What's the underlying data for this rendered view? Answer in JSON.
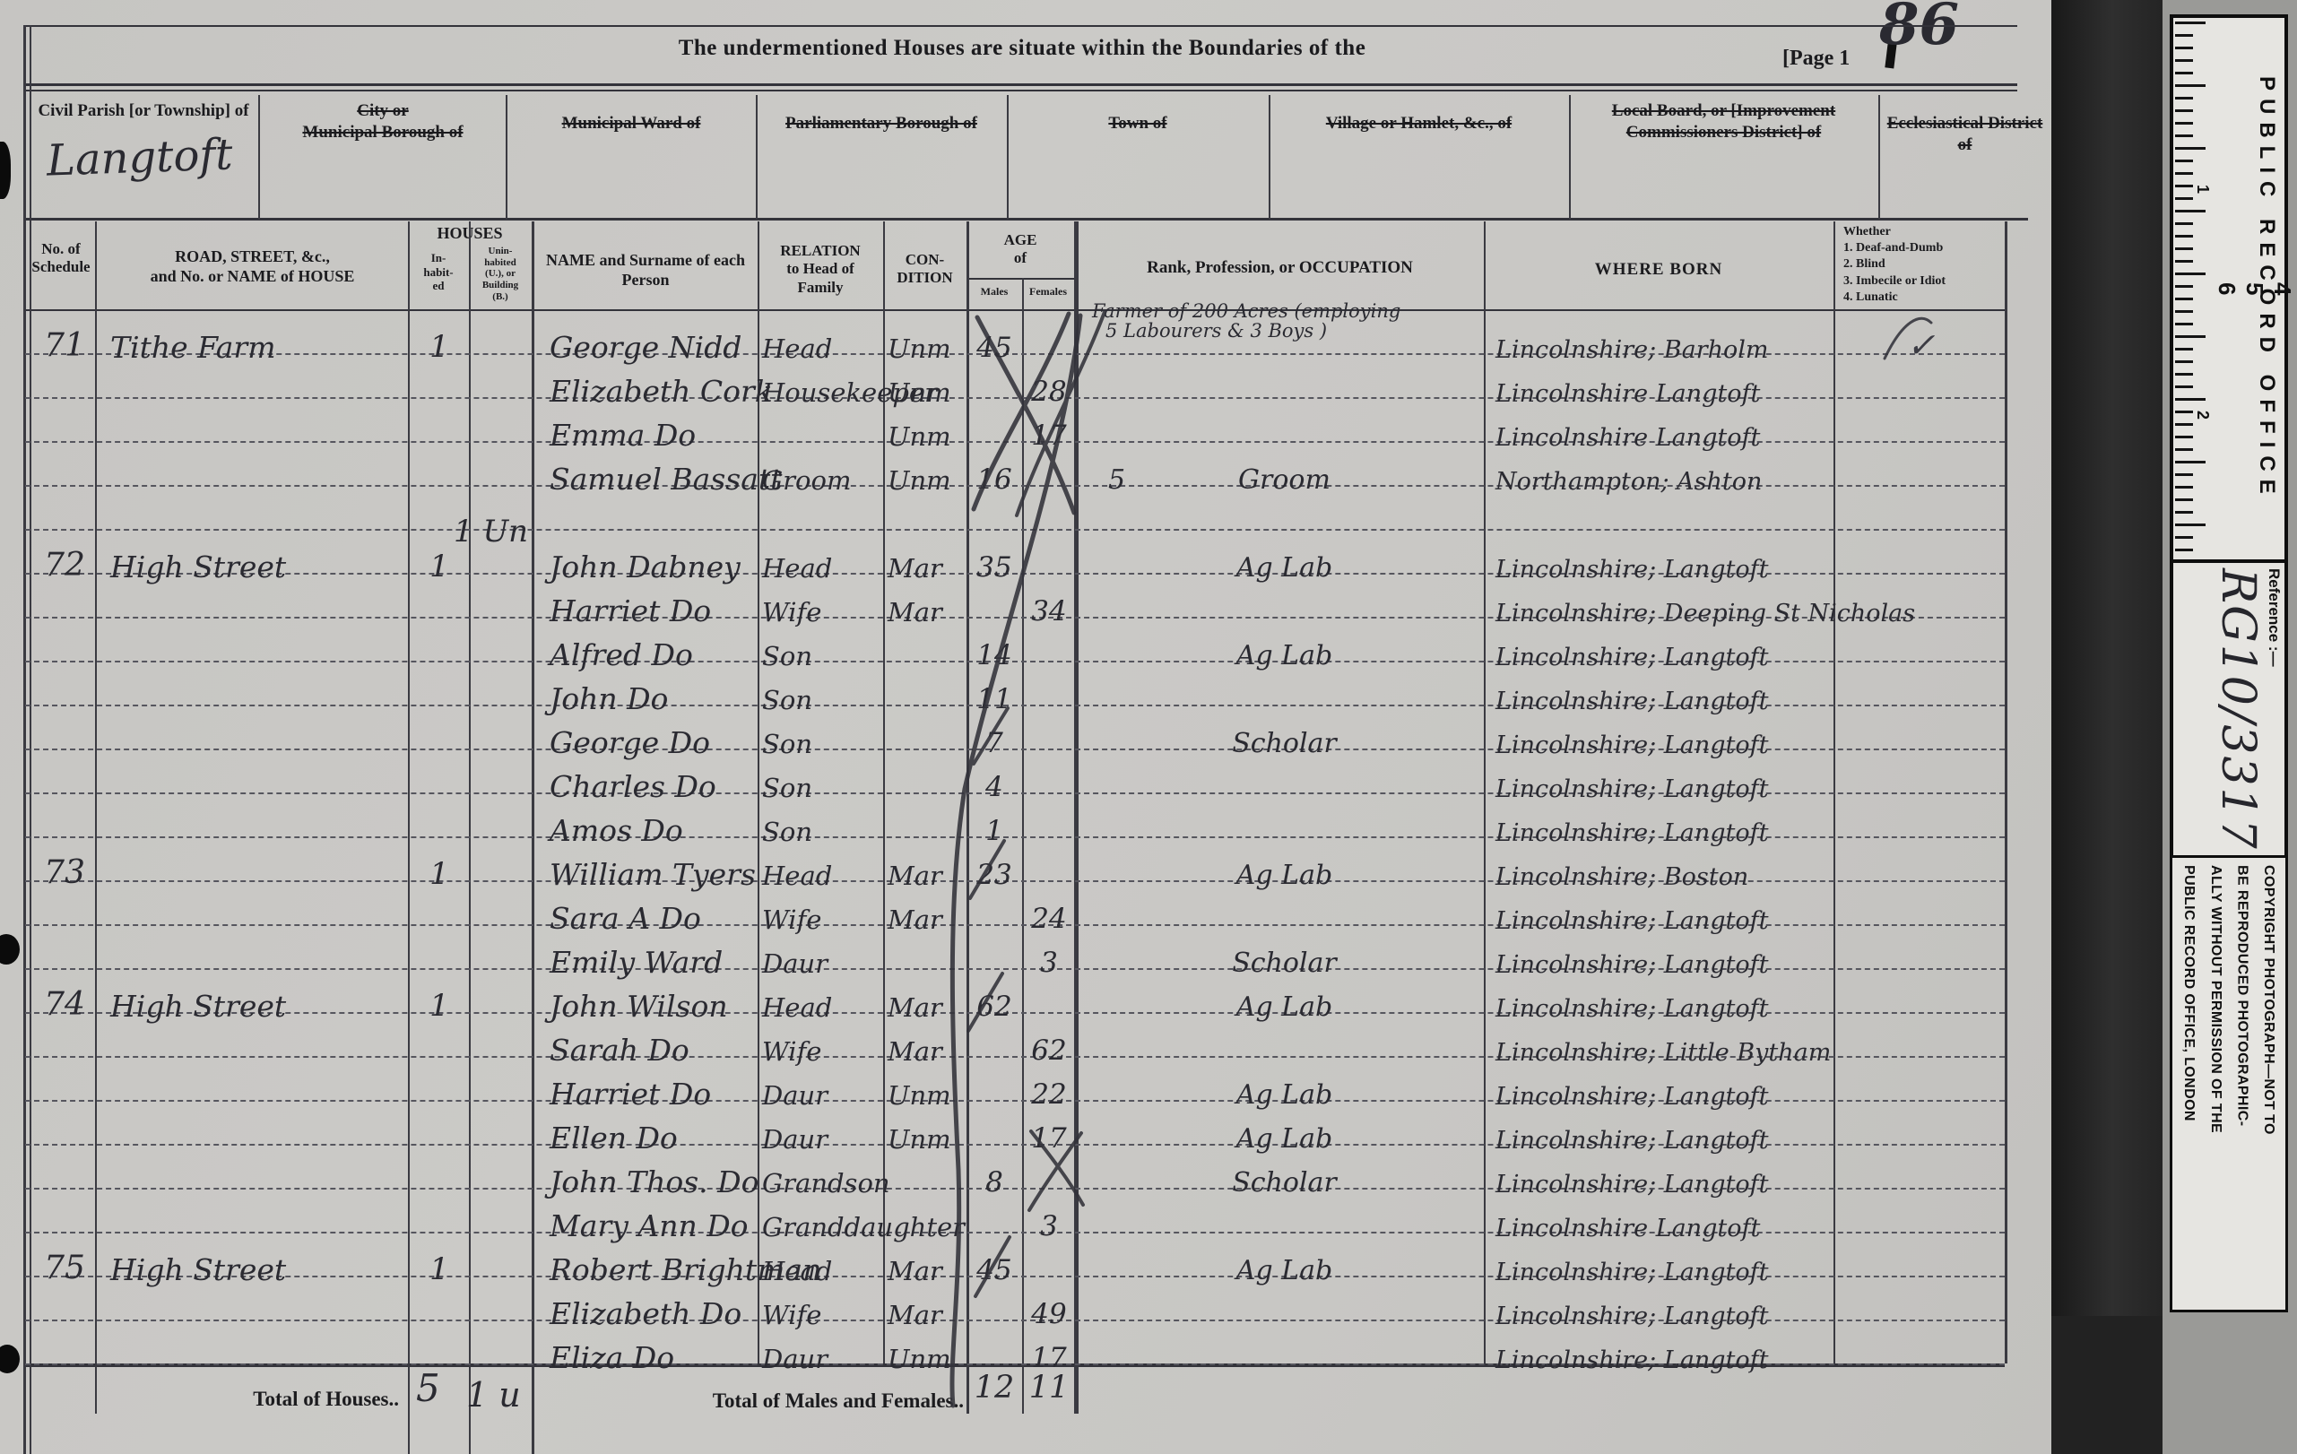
{
  "page": {
    "number": "86",
    "label": "[Page 1",
    "title": "The undermentioned Houses are situate within the Boundaries of the"
  },
  "geo": {
    "cols": [
      {
        "label": "Civil Parish [or Township] of"
      },
      {
        "label": "City or\nMunicipal Borough of"
      },
      {
        "label": "Municipal Ward of"
      },
      {
        "label": "Parliamentary Borough of"
      },
      {
        "label": "Town of"
      },
      {
        "label": "Village or Hamlet, &c., of"
      },
      {
        "label": "Local Board, or [Improvement\nCommissioners District] of"
      },
      {
        "label": "Ecclesiastical District of"
      }
    ],
    "parish_value": "Langtoft"
  },
  "heads": {
    "schedule": "No. of\nSchedule",
    "street": "ROAD, STREET, &c.,\nand No. or NAME of HOUSE",
    "houses": "HOUSES",
    "inhabited": "In-\nhabit-\ned",
    "uninhabited": "Unin-\nhabited\n(U.), or\nBuilding\n(B.)",
    "name": "NAME and Surname of each\nPerson",
    "relation": "RELATION\nto Head of\nFamily",
    "condition": "CON-\nDITION",
    "age": "AGE\nof",
    "males": "Males",
    "females": "Females",
    "occupation": "Rank, Profession, or OCCUPATION",
    "born": "WHERE BORN",
    "disability": "Whether\n1. Deaf-and-Dumb\n2. Blind\n3. Imbecile or Idiot\n4. Lunatic"
  },
  "table": {
    "rows": [
      {
        "s": "71",
        "st": "Tithe Farm",
        "inh": "1",
        "nm": "George Nidd",
        "rel": "Head",
        "cond": "Unm",
        "am": "45",
        "oc": "Farmer of 200 Acres (employing",
        "oc2": "5 Labourers & 3 Boys )",
        "born": "Lincolnshire; Barholm",
        "mk": "✓"
      },
      {
        "nm": "Elizabeth Cork",
        "rel": "Housekeeper",
        "cond": "Unm",
        "af": "28",
        "born": "Lincolnshire Langtoft"
      },
      {
        "nm": "Emma Do",
        "cond": "Unm",
        "af": "17",
        "born": "Lincolnshire Langtoft"
      },
      {
        "nm": "Samuel Bassatt",
        "rel": "Groom",
        "cond": "Unm",
        "am": "16",
        "ocp": "5",
        "oc": "Groom",
        "born": "Northampton; Ashton"
      },
      {
        "un": "1 Un"
      },
      {
        "s": "72",
        "st": "High Street",
        "inh": "1",
        "nm": "John Dabney",
        "rel": "Head",
        "cond": "Mar",
        "am": "35",
        "oc": "Ag Lab",
        "born": "Lincolnshire; Langtoft"
      },
      {
        "nm": "Harriet Do",
        "rel": "Wife",
        "cond": "Mar",
        "af": "34",
        "born": "Lincolnshire; Deeping St Nicholas"
      },
      {
        "nm": "Alfred Do",
        "rel": "Son",
        "am": "14",
        "oc": "Ag Lab",
        "born": "Lincolnshire; Langtoft"
      },
      {
        "nm": "John Do",
        "rel": "Son",
        "am": "11",
        "born": "Lincolnshire; Langtoft"
      },
      {
        "nm": "George Do",
        "rel": "Son",
        "am": "7",
        "oc": "Scholar",
        "born": "Lincolnshire; Langtoft"
      },
      {
        "nm": "Charles Do",
        "rel": "Son",
        "am": "4",
        "born": "Lincolnshire; Langtoft"
      },
      {
        "nm": "Amos Do",
        "rel": "Son",
        "am": "1",
        "born": "Lincolnshire; Langtoft"
      },
      {
        "s": "73",
        "inh": "1",
        "nm": "William Tyers",
        "rel": "Head",
        "cond": "Mar",
        "am": "23",
        "oc": "Ag Lab",
        "born": "Lincolnshire; Boston"
      },
      {
        "nm": "Sara A Do",
        "rel": "Wife",
        "cond": "Mar",
        "af": "24",
        "born": "Lincolnshire; Langtoft"
      },
      {
        "nm": "Emily Ward",
        "rel": "Daur",
        "af": "3",
        "oc": "Scholar",
        "born": "Lincolnshire; Langtoft"
      },
      {
        "s": "74",
        "st": "High Street",
        "inh": "1",
        "nm": "John Wilson",
        "rel": "Head",
        "cond": "Mar",
        "am": "62",
        "oc": "Ag Lab",
        "born": "Lincolnshire; Langtoft"
      },
      {
        "nm": "Sarah Do",
        "rel": "Wife",
        "cond": "Mar",
        "af": "62",
        "born": "Lincolnshire; Little Bytham"
      },
      {
        "nm": "Harriet Do",
        "rel": "Daur",
        "cond": "Unm",
        "af": "22",
        "oc": "Ag Lab",
        "born": "Lincolnshire; Langtoft"
      },
      {
        "nm": "Ellen Do",
        "rel": "Daur",
        "cond": "Unm",
        "af": "17",
        "oc": "Ag Lab",
        "born": "Lincolnshire; Langtoft"
      },
      {
        "nm": "John Thos. Do",
        "rel": "Grandson",
        "am": "8",
        "oc": "Scholar",
        "born": "Lincolnshire; Langtoft"
      },
      {
        "nm": "Mary Ann Do",
        "rel": "Granddaughter",
        "af": "3",
        "born": "Lincolnshire Langtoft"
      },
      {
        "s": "75",
        "st": "High Street",
        "inh": "1",
        "nm": "Robert Brightman",
        "rel": "Head",
        "cond": "Mar",
        "am": "45",
        "oc": "Ag Lab",
        "born": "Lincolnshire; Langtoft"
      },
      {
        "nm": "Elizabeth Do",
        "rel": "Wife",
        "cond": "Mar",
        "af": "49",
        "born": "Lincolnshire; Langtoft"
      },
      {
        "nm": "Eliza Do",
        "rel": "Daur",
        "cond": "Unm",
        "af": "17",
        "born": "Lincolnshire; Langtoft"
      }
    ]
  },
  "totals": {
    "houses_label": "Total of Houses..",
    "houses_value": "5",
    "houses_uninhabited": "1 u",
    "mf_label": "Total of Males and Females..",
    "males": "12",
    "females": "11"
  },
  "sidebar": {
    "office": "PUBLIC RECORD OFFICE",
    "ruler_numbers": [
      "1",
      "2",
      "3",
      "4",
      "5",
      "6"
    ],
    "inch_numbers": [
      "1",
      "2"
    ],
    "reference_label": "Reference :—",
    "reference_value": "RG10/3317",
    "copyright_lines": [
      "COPYRIGHT PHOTOGRAPH—NOT TO",
      "BE REPRODUCED PHOTOGRAPHIC-",
      "ALLY WITHOUT PERMISSION OF THE",
      "PUBLIC RECORD OFFICE, LONDON"
    ]
  }
}
